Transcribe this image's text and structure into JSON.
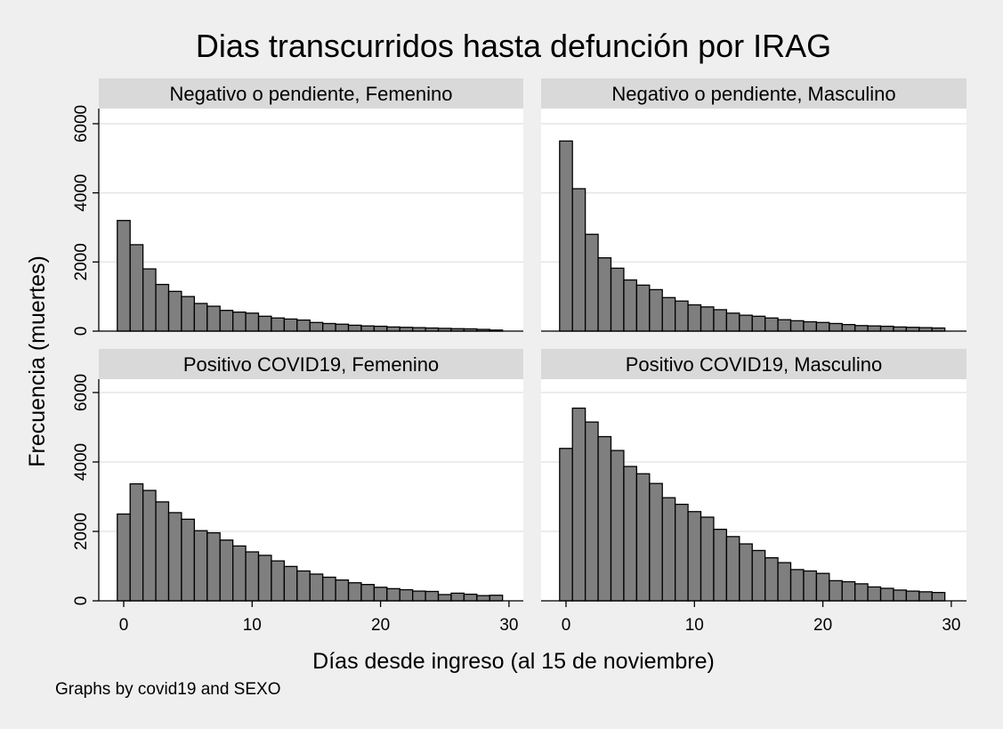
{
  "colors": {
    "background": "#efefef",
    "plot_bg": "#ffffff",
    "strip_bg": "#d9d9d9",
    "bar_fill": "#7f7f7f",
    "bar_stroke": "#000000",
    "grid": "#e6e6e6"
  },
  "chart_data": {
    "type": "bar",
    "title": "Dias transcurridos hasta defunción por IRAG",
    "xlabel": "Días desde ingreso (al 15 de noviembre)",
    "ylabel": "Frecuencia (muertes)",
    "note": "Graphs by covid19 and SEXO",
    "xlim": [
      -1,
      30
    ],
    "ylim": [
      0,
      6000
    ],
    "x_ticks": [
      0,
      10,
      20,
      30
    ],
    "y_ticks": [
      0,
      2000,
      4000,
      6000
    ],
    "grid": true,
    "x": [
      0,
      1,
      2,
      3,
      4,
      5,
      6,
      7,
      8,
      9,
      10,
      11,
      12,
      13,
      14,
      15,
      16,
      17,
      18,
      19,
      20,
      21,
      22,
      23,
      24,
      25,
      26,
      27,
      28,
      29
    ],
    "panels": [
      {
        "label": "Negativo o pendiente, Femenino",
        "values": [
          3200,
          2500,
          1800,
          1350,
          1150,
          1000,
          800,
          720,
          600,
          550,
          520,
          430,
          380,
          350,
          320,
          250,
          220,
          200,
          170,
          150,
          140,
          120,
          110,
          100,
          90,
          80,
          70,
          65,
          50,
          30
        ]
      },
      {
        "label": "Negativo o pendiente, Masculino",
        "values": [
          5500,
          4120,
          2800,
          2120,
          1820,
          1480,
          1330,
          1200,
          970,
          870,
          760,
          700,
          620,
          520,
          460,
          430,
          380,
          330,
          300,
          270,
          250,
          220,
          190,
          160,
          150,
          140,
          120,
          110,
          100,
          90
        ]
      },
      {
        "label": "Positivo COVID19, Femenino",
        "values": [
          2500,
          3370,
          3180,
          2850,
          2540,
          2350,
          2020,
          1960,
          1750,
          1580,
          1410,
          1310,
          1150,
          990,
          860,
          770,
          680,
          600,
          520,
          470,
          390,
          350,
          320,
          280,
          270,
          180,
          220,
          190,
          150,
          160
        ]
      },
      {
        "label": "Positivo COVID19, Masculino",
        "values": [
          4390,
          5550,
          5150,
          4730,
          4330,
          3870,
          3660,
          3380,
          2970,
          2780,
          2570,
          2410,
          2060,
          1850,
          1640,
          1450,
          1240,
          1100,
          900,
          860,
          790,
          580,
          550,
          490,
          400,
          360,
          310,
          280,
          260,
          240
        ]
      }
    ]
  }
}
